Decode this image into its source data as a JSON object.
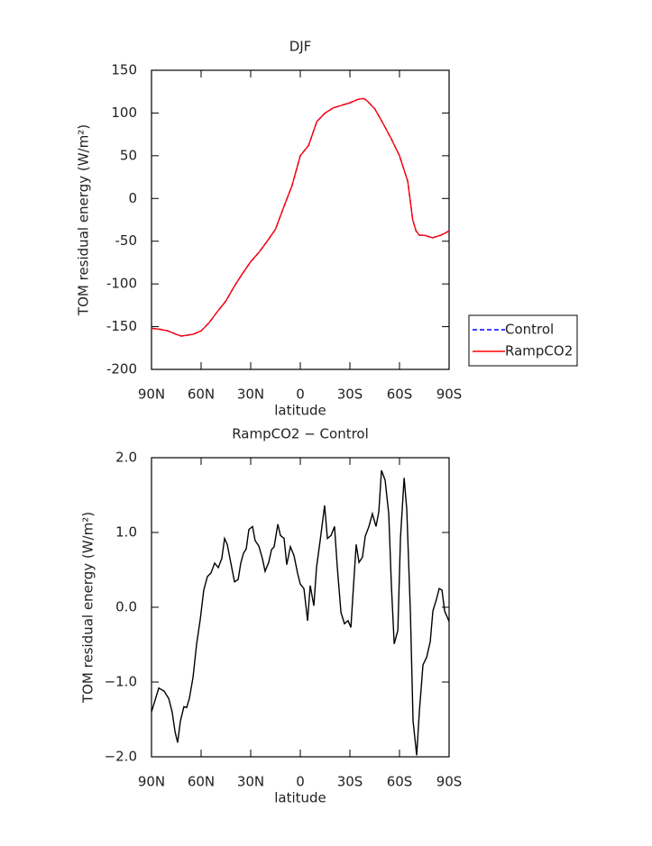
{
  "chart_data": [
    {
      "type": "line",
      "title": "DJF",
      "x_label": "latitude",
      "y_label": "TOM residual energy (W/m²)",
      "xlim": [
        90,
        -90
      ],
      "xticks": [
        {
          "value": 90,
          "label": "90N"
        },
        {
          "value": 60,
          "label": "60N"
        },
        {
          "value": 30,
          "label": "30N"
        },
        0,
        {
          "value": -30,
          "label": "30S"
        },
        {
          "value": -60,
          "label": "60S"
        },
        {
          "value": -90,
          "label": "90S"
        }
      ],
      "ylim": [
        -200,
        150
      ],
      "yticks": [
        -200,
        -150,
        -100,
        -50,
        0,
        50,
        100,
        150
      ],
      "legend": "right",
      "x": [
        90,
        85,
        80,
        75,
        72,
        65,
        60,
        55,
        50,
        45,
        40,
        35,
        30,
        25,
        20,
        15,
        10,
        5,
        0,
        -5,
        -10,
        -15,
        -20,
        -25,
        -30,
        -35,
        -38,
        -40,
        -45,
        -50,
        -55,
        -60,
        -65,
        -68,
        -70,
        -72,
        -75,
        -80,
        -85,
        -90
      ],
      "series": [
        {
          "name": "Control",
          "color": "#0000ff",
          "style": "dashed",
          "values": [
            -152,
            -153,
            -155,
            -159,
            -161,
            -159,
            -155,
            -145,
            -132,
            -120,
            -103,
            -88,
            -74,
            -63,
            -50,
            -36,
            -10,
            15,
            50,
            62,
            90,
            100,
            106,
            109,
            112,
            116,
            117,
            115,
            105,
            88,
            70,
            50,
            20,
            -25,
            -38,
            -43,
            -43,
            -46,
            -43,
            -38
          ]
        },
        {
          "name": "RampCO2",
          "color": "#ff0000",
          "style": "solid",
          "values": [
            -152,
            -153,
            -155,
            -159,
            -161,
            -159,
            -155,
            -145,
            -132,
            -120,
            -103,
            -88,
            -74,
            -63,
            -50,
            -36,
            -10,
            15,
            50,
            62,
            90,
            100,
            106,
            109,
            112,
            116,
            117,
            115,
            105,
            88,
            70,
            50,
            20,
            -25,
            -38,
            -43,
            -43,
            -46,
            -43,
            -38
          ]
        }
      ]
    },
    {
      "type": "line",
      "title": "RampCO2 − Control",
      "x_label": "latitude",
      "y_label": "TOM residual energy (W/m²)",
      "xlim": [
        90,
        -90
      ],
      "xticks": [
        {
          "value": 90,
          "label": "90N"
        },
        {
          "value": 60,
          "label": "60N"
        },
        {
          "value": 30,
          "label": "30N"
        },
        0,
        {
          "value": -30,
          "label": "30S"
        },
        {
          "value": -60,
          "label": "60S"
        },
        {
          "value": -90,
          "label": "90S"
        }
      ],
      "ylim": [
        -2,
        2
      ],
      "yticks": [
        {
          "value": -2,
          "label": "−2.0"
        },
        {
          "value": -1,
          "label": "−1.0"
        },
        {
          "value": 0,
          "label": "0.0"
        },
        {
          "value": 1,
          "label": "1.0"
        },
        {
          "value": 2,
          "label": "2.0"
        }
      ],
      "x": [
        90,
        85.6,
        82.4,
        79.6,
        77.5,
        75.8,
        74.2,
        72.5,
        70.4,
        68.7,
        67.1,
        64.9,
        62.7,
        60.5,
        58.4,
        56.2,
        54.0,
        51.8,
        49.6,
        47.5,
        45.8,
        44.2,
        42.0,
        39.8,
        37.6,
        36.0,
        34.4,
        32.7,
        31.1,
        28.9,
        27.3,
        25.1,
        22.9,
        21.3,
        19.1,
        17.4,
        15.8,
        13.6,
        12.0,
        9.8,
        8.2,
        6.0,
        3.8,
        1.6,
        0,
        -2.2,
        -4.4,
        -6.0,
        -8.2,
        -9.8,
        -12.0,
        -14.7,
        -16.4,
        -18.6,
        -20.7,
        -22.4,
        -24.6,
        -26.7,
        -28.9,
        -30.6,
        -32.2,
        -33.8,
        -35.5,
        -37.6,
        -39.3,
        -41.5,
        -43.6,
        -45.8,
        -47.5,
        -49.1,
        -51.3,
        -53.5,
        -55.1,
        -56.8,
        -59.0,
        -60.6,
        -62.8,
        -64.4,
        -66.6,
        -68.2,
        -70.4,
        -72.0,
        -74.2,
        -76.4,
        -78.6,
        -80.2,
        -82.4,
        -84.0,
        -85.7,
        -87.3,
        -90
      ],
      "series": [
        {
          "color": "#000000",
          "style": "solid",
          "values": [
            -1.4,
            -1.08,
            -1.12,
            -1.22,
            -1.4,
            -1.66,
            -1.81,
            -1.52,
            -1.33,
            -1.34,
            -1.22,
            -0.94,
            -0.49,
            -0.16,
            0.23,
            0.41,
            0.46,
            0.59,
            0.53,
            0.65,
            0.92,
            0.84,
            0.59,
            0.34,
            0.37,
            0.59,
            0.72,
            0.78,
            1.04,
            1.08,
            0.89,
            0.82,
            0.65,
            0.48,
            0.6,
            0.77,
            0.81,
            1.11,
            0.96,
            0.92,
            0.57,
            0.81,
            0.69,
            0.45,
            0.31,
            0.25,
            -0.18,
            0.29,
            0.02,
            0.53,
            0.89,
            1.36,
            0.92,
            0.96,
            1.08,
            0.53,
            -0.07,
            -0.22,
            -0.18,
            -0.27,
            0.29,
            0.84,
            0.6,
            0.67,
            0.95,
            1.08,
            1.25,
            1.08,
            1.28,
            1.83,
            1.7,
            1.25,
            0.29,
            -0.49,
            -0.31,
            0.93,
            1.73,
            1.31,
            -0.07,
            -1.52,
            -1.98,
            -1.4,
            -0.77,
            -0.67,
            -0.46,
            -0.05,
            0.11,
            0.25,
            0.23,
            -0.05,
            -0.19
          ]
        }
      ]
    }
  ]
}
